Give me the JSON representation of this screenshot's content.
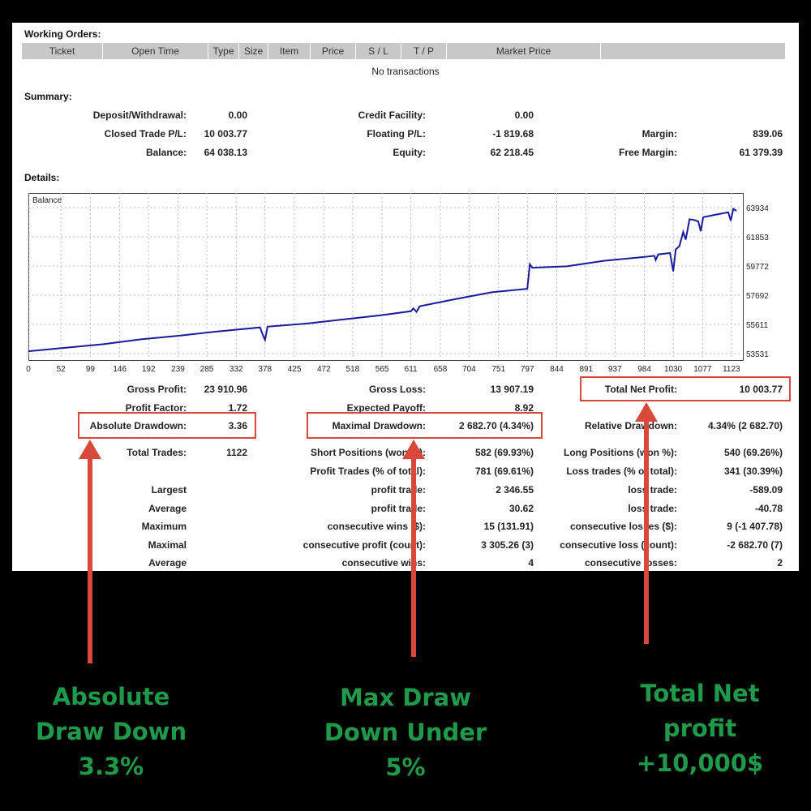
{
  "working_orders": {
    "title": "Working Orders:",
    "columns": [
      "Ticket",
      "Open Time",
      "Type",
      "Size",
      "Item",
      "Price",
      "S / L",
      "T / P",
      "Market Price",
      ""
    ],
    "empty_text": "No transactions"
  },
  "summary": {
    "title": "Summary:",
    "deposit_label": "Deposit/Withdrawal:",
    "deposit_value": "0.00",
    "credit_label": "Credit Facility:",
    "credit_value": "0.00",
    "closed_pl_label": "Closed Trade P/L:",
    "closed_pl_value": "10 003.77",
    "floating_pl_label": "Floating P/L:",
    "floating_pl_value": "-1 819.68",
    "margin_label": "Margin:",
    "margin_value": "839.06",
    "balance_label": "Balance:",
    "balance_value": "64 038.13",
    "equity_label": "Equity:",
    "equity_value": "62 218.45",
    "free_margin_label": "Free Margin:",
    "free_margin_value": "61 379.39"
  },
  "details": {
    "title": "Details:",
    "gross_profit_label": "Gross Profit:",
    "gross_profit_value": "23 910.96",
    "gross_loss_label": "Gross Loss:",
    "gross_loss_value": "13 907.19",
    "total_net_profit_label": "Total Net Profit:",
    "total_net_profit_value": "10 003.77",
    "profit_factor_label": "Profit Factor:",
    "profit_factor_value": "1.72",
    "expected_payoff_label": "Expected Payoff:",
    "expected_payoff_value": "8.92",
    "absolute_drawdown_label": "Absolute Drawdown:",
    "absolute_drawdown_value": "3.36",
    "maximal_drawdown_label": "Maximal Drawdown:",
    "maximal_drawdown_value": "2 682.70 (4.34%)",
    "relative_drawdown_label": "Relative Drawdown:",
    "relative_drawdown_value": "4.34% (2 682.70)",
    "total_trades_label": "Total Trades:",
    "total_trades_value": "1122",
    "short_positions_label": "Short Positions (won %):",
    "short_positions_value": "582 (69.93%)",
    "long_positions_label": "Long Positions (won %):",
    "long_positions_value": "540 (69.26%)",
    "profit_trades_label": "Profit Trades (% of total):",
    "profit_trades_value": "781 (69.61%)",
    "loss_trades_label": "Loss trades (% of total):",
    "loss_trades_value": "341 (30.39%)",
    "largest_label": "Largest",
    "largest_profit_label": "profit trade:",
    "largest_profit_value": "2 346.55",
    "largest_loss_label": "loss trade:",
    "largest_loss_value": "-589.09",
    "average_label": "Average",
    "average_profit_label": "profit trade:",
    "average_profit_value": "30.62",
    "average_loss_label": "loss trade:",
    "average_loss_value": "-40.78",
    "maximum_label": "Maximum",
    "max_cons_wins_label": "consecutive wins ($):",
    "max_cons_wins_value": "15 (131.91)",
    "max_cons_losses_label": "consecutive losses ($):",
    "max_cons_losses_value": "9 (-1 407.78)",
    "maximal_label": "Maximal",
    "maximal_cons_profit_label": "consecutive profit (count):",
    "maximal_cons_profit_value": "3 305.26 (3)",
    "maximal_cons_loss_label": "consecutive loss (count):",
    "maximal_cons_loss_value": "-2 682.70 (7)",
    "average2_label": "Average",
    "avg_cons_wins_label": "consecutive wins:",
    "avg_cons_wins_value": "4",
    "avg_cons_losses_label": "consecutive losses:",
    "avg_cons_losses_value": "2"
  },
  "annotations": {
    "absolute_caption": [
      "Absolute",
      "Draw Down",
      "3.3%"
    ],
    "max_caption": [
      "Max Draw",
      "Down Under",
      "5%"
    ],
    "net_caption": [
      "Total Net",
      "profit",
      "+10,000$"
    ],
    "highlight_color": "#d9483b",
    "caption_color": "#1f9a4a"
  },
  "chart_data": {
    "type": "line",
    "title": "Balance",
    "x_ticks": [
      0,
      52,
      99,
      146,
      192,
      239,
      285,
      332,
      378,
      425,
      472,
      518,
      565,
      611,
      658,
      704,
      751,
      797,
      844,
      891,
      937,
      984,
      1030,
      1077,
      1123
    ],
    "y_ticks": [
      53531,
      55611,
      57692,
      59772,
      61853,
      63934
    ],
    "ylim": [
      53531,
      63934
    ],
    "xlim": [
      0,
      1140
    ],
    "grid": true,
    "series": [
      {
        "name": "Balance",
        "color": "#1a1aa0",
        "points": [
          [
            0,
            53700
          ],
          [
            60,
            53950
          ],
          [
            120,
            54200
          ],
          [
            180,
            54550
          ],
          [
            240,
            54800
          ],
          [
            300,
            55100
          ],
          [
            370,
            55400
          ],
          [
            375,
            54800
          ],
          [
            378,
            54500
          ],
          [
            382,
            55450
          ],
          [
            440,
            55650
          ],
          [
            500,
            55950
          ],
          [
            560,
            56250
          ],
          [
            611,
            56550
          ],
          [
            615,
            56750
          ],
          [
            620,
            56500
          ],
          [
            625,
            56900
          ],
          [
            680,
            57400
          ],
          [
            740,
            57900
          ],
          [
            797,
            58150
          ],
          [
            801,
            59900
          ],
          [
            805,
            59650
          ],
          [
            860,
            59750
          ],
          [
            920,
            60150
          ],
          [
            980,
            60400
          ],
          [
            1000,
            60500
          ],
          [
            1002,
            60200
          ],
          [
            1006,
            60600
          ],
          [
            1025,
            60700
          ],
          [
            1030,
            59400
          ],
          [
            1034,
            60950
          ],
          [
            1040,
            61200
          ],
          [
            1046,
            62200
          ],
          [
            1050,
            61650
          ],
          [
            1056,
            63100
          ],
          [
            1064,
            63050
          ],
          [
            1070,
            62950
          ],
          [
            1074,
            62250
          ],
          [
            1078,
            63250
          ],
          [
            1100,
            63450
          ],
          [
            1118,
            63600
          ],
          [
            1122,
            63000
          ],
          [
            1126,
            63850
          ],
          [
            1131,
            63700
          ]
        ]
      }
    ]
  }
}
